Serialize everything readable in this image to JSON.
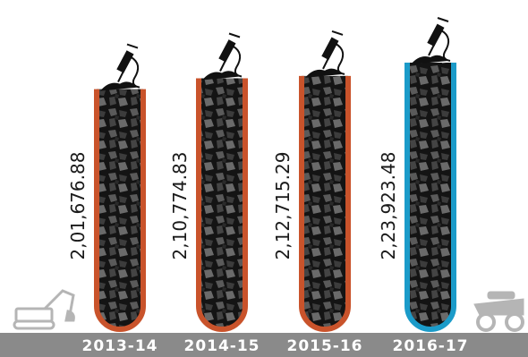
{
  "chart_data": {
    "type": "bar",
    "categories": [
      "2013-14",
      "2014-15",
      "2015-16",
      "2016-17"
    ],
    "values": [
      201676.88,
      210774.83,
      212715.29,
      223923.48
    ],
    "value_labels": [
      "2,01,676.88",
      "2,10,774.83",
      "2,12,715.29",
      "2,23,923.48"
    ],
    "colors": [
      "#c9532b",
      "#c9532b",
      "#c9532b",
      "#1b9bc9"
    ]
  }
}
